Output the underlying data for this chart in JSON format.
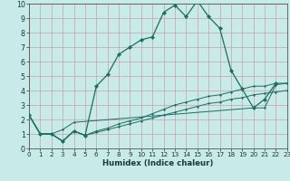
{
  "xlabel": "Humidex (Indice chaleur)",
  "bg_color": "#c8eae8",
  "line_color": "#1a6e60",
  "grid_color": "#c8a0a8",
  "xlim": [
    0,
    23
  ],
  "ylim": [
    0,
    10
  ],
  "xticks": [
    0,
    1,
    2,
    3,
    4,
    5,
    6,
    7,
    8,
    9,
    10,
    11,
    12,
    13,
    14,
    15,
    16,
    17,
    18,
    19,
    20,
    21,
    22,
    23
  ],
  "yticks": [
    0,
    1,
    2,
    3,
    4,
    5,
    6,
    7,
    8,
    9,
    10
  ],
  "main_x": [
    0,
    1,
    2,
    3,
    4,
    5,
    6,
    7,
    8,
    9,
    10,
    11,
    12,
    13,
    14,
    15,
    16,
    17,
    18,
    19,
    20,
    21,
    22
  ],
  "main_y": [
    2.3,
    1.0,
    1.0,
    0.5,
    1.2,
    0.9,
    4.3,
    5.1,
    6.5,
    7.0,
    7.5,
    7.7,
    9.4,
    9.9,
    9.1,
    10.2,
    9.1,
    8.3,
    5.4,
    4.1,
    2.8,
    3.4,
    4.5
  ],
  "trendA_x": [
    0,
    1,
    2,
    3,
    4,
    5,
    6,
    7,
    8,
    9,
    10,
    11,
    12,
    13,
    14,
    15,
    16,
    17,
    18,
    19,
    20,
    21,
    22,
    23
  ],
  "trendA_y": [
    2.3,
    1.0,
    1.0,
    0.5,
    1.2,
    0.9,
    1.2,
    1.4,
    1.7,
    1.9,
    2.1,
    2.4,
    2.7,
    3.0,
    3.2,
    3.4,
    3.6,
    3.7,
    3.9,
    4.1,
    4.3,
    4.3,
    4.5,
    4.5
  ],
  "trendB_x": [
    0,
    1,
    2,
    3,
    4,
    5,
    6,
    7,
    8,
    9,
    10,
    11,
    12,
    13,
    14,
    15,
    16,
    17,
    18,
    19,
    20,
    21,
    22,
    23
  ],
  "trendB_y": [
    2.3,
    1.0,
    1.0,
    0.5,
    1.2,
    0.9,
    1.1,
    1.3,
    1.5,
    1.7,
    1.9,
    2.1,
    2.3,
    2.5,
    2.7,
    2.9,
    3.1,
    3.2,
    3.4,
    3.5,
    3.7,
    3.8,
    3.9,
    4.0
  ],
  "trendC_x": [
    0,
    1,
    2,
    3,
    4,
    20,
    21,
    22,
    23
  ],
  "trendC_y": [
    2.3,
    1.0,
    1.0,
    1.3,
    1.8,
    2.8,
    2.8,
    4.4,
    4.5
  ]
}
